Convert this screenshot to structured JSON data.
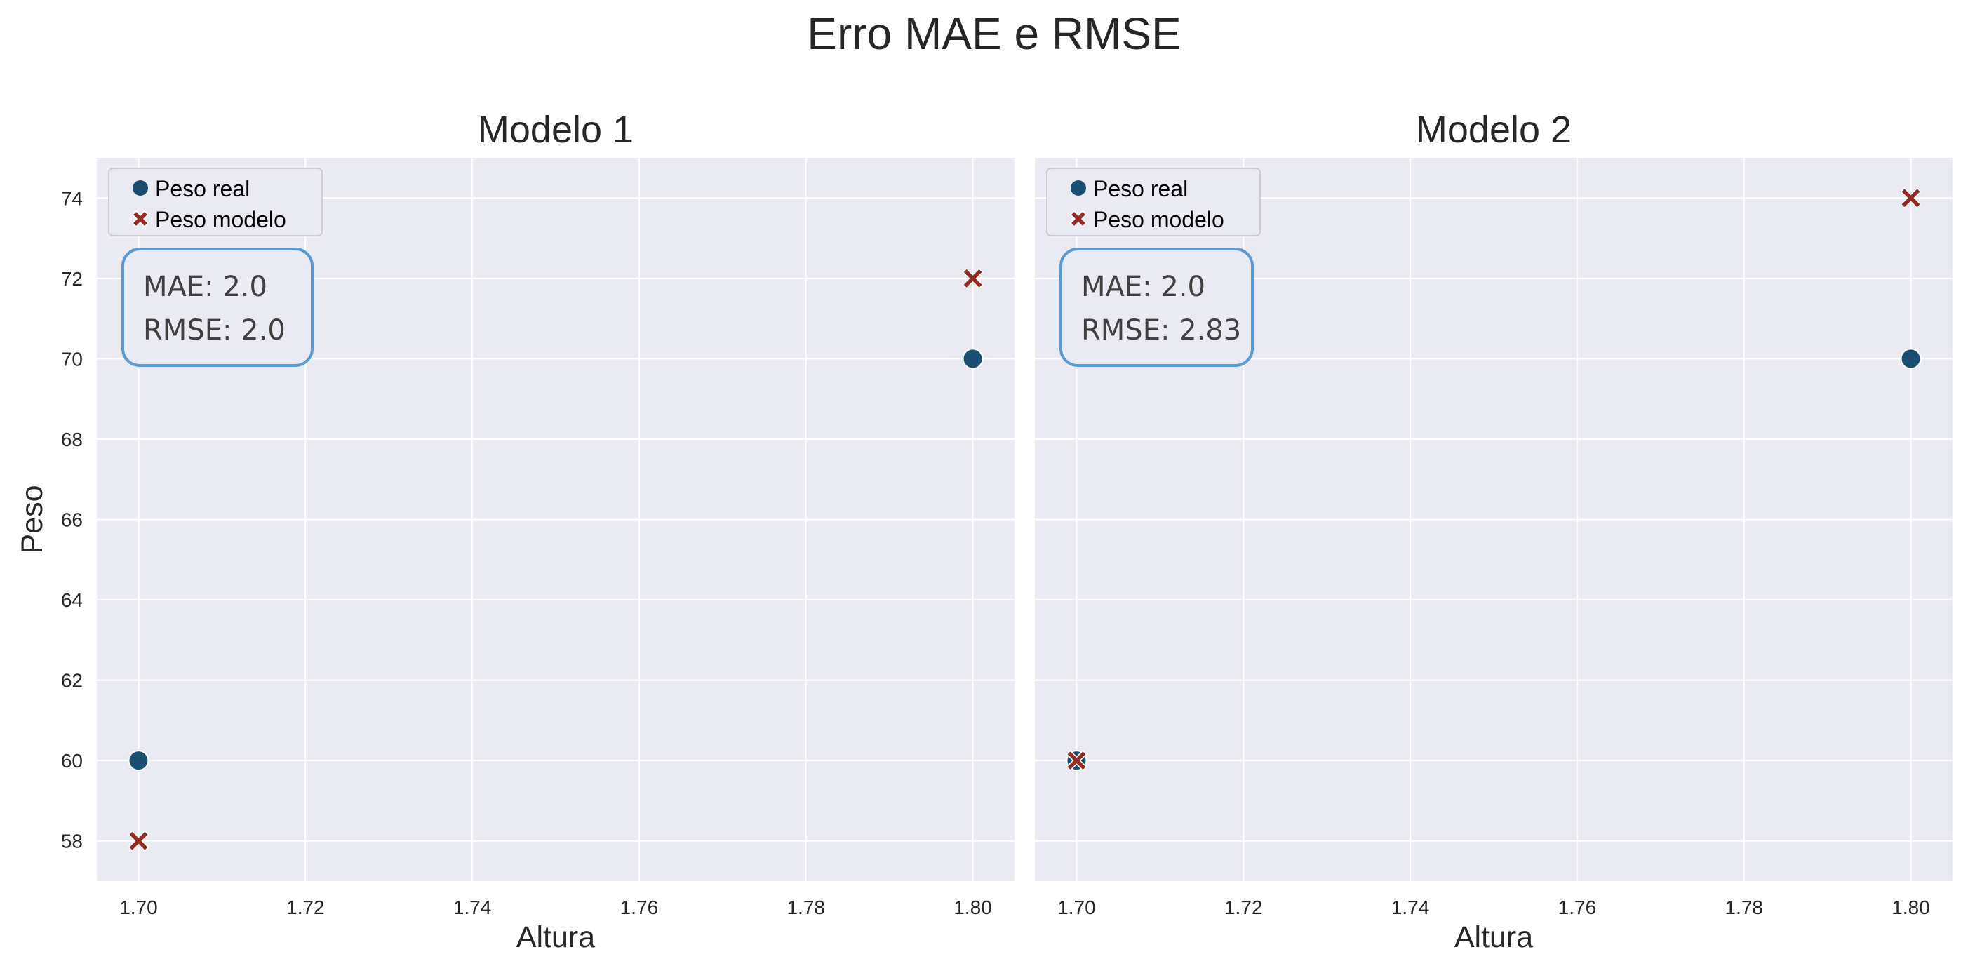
{
  "title": "Erro MAE e RMSE",
  "colors": {
    "plot_bg": "#EAEAF2",
    "grid": "#FFFFFF",
    "real": "#1B4F72",
    "modelo": "#922B21",
    "stat_box": "#5B9BD5"
  },
  "chart_data": [
    {
      "type": "scatter",
      "title": "Modelo 1",
      "xlabel": "Altura",
      "ylabel": "Peso",
      "xlim": [
        1.695,
        1.805
      ],
      "ylim": [
        57.0,
        75.0
      ],
      "xticks": [
        "1.70",
        "1.72",
        "1.74",
        "1.76",
        "1.78",
        "1.80"
      ],
      "xtick_values": [
        1.7,
        1.72,
        1.74,
        1.76,
        1.78,
        1.8
      ],
      "yticks": [
        "58",
        "60",
        "62",
        "64",
        "66",
        "68",
        "70",
        "72",
        "74"
      ],
      "ytick_values": [
        58,
        60,
        62,
        64,
        66,
        68,
        70,
        72,
        74
      ],
      "grid": true,
      "legend": "upper-left",
      "series": [
        {
          "name": "Peso real",
          "marker": "circle",
          "x": [
            1.7,
            1.8
          ],
          "y": [
            60,
            70
          ]
        },
        {
          "name": "Peso modelo",
          "marker": "x",
          "x": [
            1.7,
            1.8
          ],
          "y": [
            58,
            72
          ]
        }
      ],
      "annotation": [
        "MAE: 2.0",
        "RMSE: 2.0"
      ]
    },
    {
      "type": "scatter",
      "title": "Modelo 2",
      "xlabel": "Altura",
      "ylabel": "",
      "xlim": [
        1.695,
        1.805
      ],
      "ylim": [
        57.0,
        75.0
      ],
      "xticks": [
        "1.70",
        "1.72",
        "1.74",
        "1.76",
        "1.78",
        "1.80"
      ],
      "xtick_values": [
        1.7,
        1.72,
        1.74,
        1.76,
        1.78,
        1.8
      ],
      "yticks": [],
      "ytick_values": [
        58,
        60,
        62,
        64,
        66,
        68,
        70,
        72,
        74
      ],
      "grid": true,
      "legend": "upper-left",
      "series": [
        {
          "name": "Peso real",
          "marker": "circle",
          "x": [
            1.7,
            1.8
          ],
          "y": [
            60,
            70
          ]
        },
        {
          "name": "Peso modelo",
          "marker": "x",
          "x": [
            1.7,
            1.8
          ],
          "y": [
            60,
            74
          ]
        }
      ],
      "annotation": [
        "MAE: 2.0",
        "RMSE: 2.83"
      ]
    }
  ]
}
